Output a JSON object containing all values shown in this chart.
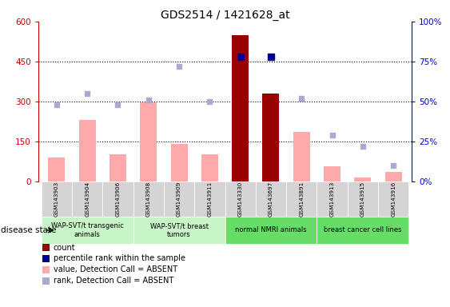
{
  "title": "GDS2514 / 1421628_at",
  "samples": [
    "GSM143903",
    "GSM143904",
    "GSM143906",
    "GSM143908",
    "GSM143909",
    "GSM143911",
    "GSM143330",
    "GSM143697",
    "GSM143891",
    "GSM143913",
    "GSM143915",
    "GSM143916"
  ],
  "count_values": [
    null,
    null,
    null,
    null,
    null,
    null,
    550,
    330,
    null,
    null,
    null,
    null
  ],
  "count_absent_values": [
    90,
    230,
    100,
    295,
    140,
    100,
    null,
    null,
    185,
    55,
    15,
    35
  ],
  "rank_values": [
    null,
    null,
    null,
    null,
    null,
    null,
    78,
    78,
    null,
    null,
    null,
    null
  ],
  "rank_absent_values": [
    48,
    55,
    48,
    51,
    72,
    50,
    null,
    null,
    52,
    29,
    22,
    10
  ],
  "group_data": [
    {
      "label": "WAP-SVT/t transgenic\nanimals",
      "indices": [
        0,
        1,
        2
      ],
      "color": "#c8f5c8"
    },
    {
      "label": "WAP-SVT/t breast\ntumors",
      "indices": [
        3,
        4,
        5
      ],
      "color": "#c8f5c8"
    },
    {
      "label": "normal NMRI animals",
      "indices": [
        6,
        7,
        8
      ],
      "color": "#66dd66"
    },
    {
      "label": "breast cancer cell lines",
      "indices": [
        9,
        10,
        11
      ],
      "color": "#66dd66"
    }
  ],
  "ylim_left": [
    0,
    600
  ],
  "ylim_right": [
    0,
    100
  ],
  "yticks_left": [
    0,
    150,
    300,
    450,
    600
  ],
  "ytick_labels_left": [
    "0",
    "150",
    "300",
    "450",
    "600"
  ],
  "yticks_right": [
    0,
    25,
    50,
    75,
    100
  ],
  "ytick_labels_right": [
    "0%",
    "25%",
    "50%",
    "75%",
    "100%"
  ],
  "hgrid_at": [
    150,
    300,
    450
  ],
  "bar_color_count": "#990000",
  "bar_color_absent": "#ffaaaa",
  "dot_color_rank": "#000099",
  "dot_color_rank_absent": "#aaaacc",
  "bg_color": "#ffffff",
  "left_axis_color": "#cc0000",
  "right_axis_color": "#0000cc",
  "bar_width": 0.55,
  "legend_items": [
    {
      "color": "#990000",
      "label": "count"
    },
    {
      "color": "#000099",
      "label": "percentile rank within the sample"
    },
    {
      "color": "#ffaaaa",
      "label": "value, Detection Call = ABSENT"
    },
    {
      "color": "#aaaacc",
      "label": "rank, Detection Call = ABSENT"
    }
  ],
  "disease_state_label": "disease state"
}
